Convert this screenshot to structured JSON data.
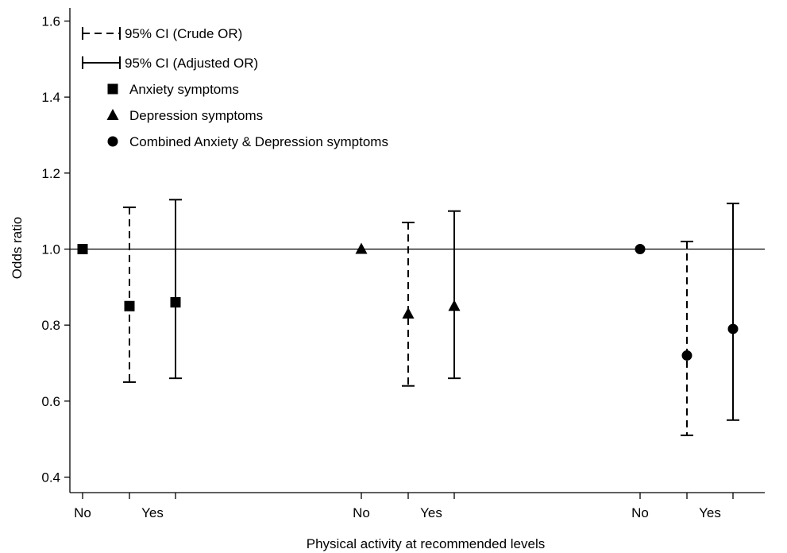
{
  "chart_data": {
    "type": "scatter",
    "title": "",
    "xlabel": "Physical activity at recommended levels",
    "ylabel": "Odds ratio",
    "ylim": [
      0.4,
      1.6
    ],
    "yticks": [
      0.4,
      0.6,
      0.8,
      1.0,
      1.2,
      1.4,
      1.6
    ],
    "ytick_labels": [
      "0.4",
      "0.6",
      "0.8",
      "1.0",
      "1.2",
      "1.4",
      "1.6"
    ],
    "reference_line": 1.0,
    "grid": false,
    "legend_position": "top-left",
    "legend": [
      {
        "key": "crude",
        "label": "95% CI (Crude OR)",
        "symbol": "dashed-line"
      },
      {
        "key": "adjusted",
        "label": "95% CI (Adjusted OR)",
        "symbol": "solid-line"
      },
      {
        "key": "anxiety",
        "label": "Anxiety symptoms",
        "symbol": "square"
      },
      {
        "key": "depression",
        "label": "Depression symptoms",
        "symbol": "triangle"
      },
      {
        "key": "combined",
        "label": "Combined Anxiety & Depression symptoms",
        "symbol": "circle"
      }
    ],
    "groups": [
      {
        "key": "anxiety",
        "marker": "square",
        "labels": {
          "no": "No",
          "yes": "Yes"
        },
        "reference_or": 1.0,
        "crude": {
          "or": 0.85,
          "lower": 0.65,
          "upper": 1.11
        },
        "adjusted": {
          "or": 0.86,
          "lower": 0.66,
          "upper": 1.13
        }
      },
      {
        "key": "depression",
        "marker": "triangle",
        "labels": {
          "no": "No",
          "yes": "Yes"
        },
        "reference_or": 1.0,
        "crude": {
          "or": 0.83,
          "lower": 0.64,
          "upper": 1.07
        },
        "adjusted": {
          "or": 0.85,
          "lower": 0.66,
          "upper": 1.1
        }
      },
      {
        "key": "combined",
        "marker": "circle",
        "labels": {
          "no": "No",
          "yes": "Yes"
        },
        "reference_or": 1.0,
        "crude": {
          "or": 0.72,
          "lower": 0.51,
          "upper": 1.02
        },
        "adjusted": {
          "or": 0.79,
          "lower": 0.55,
          "upper": 1.12
        }
      }
    ]
  }
}
